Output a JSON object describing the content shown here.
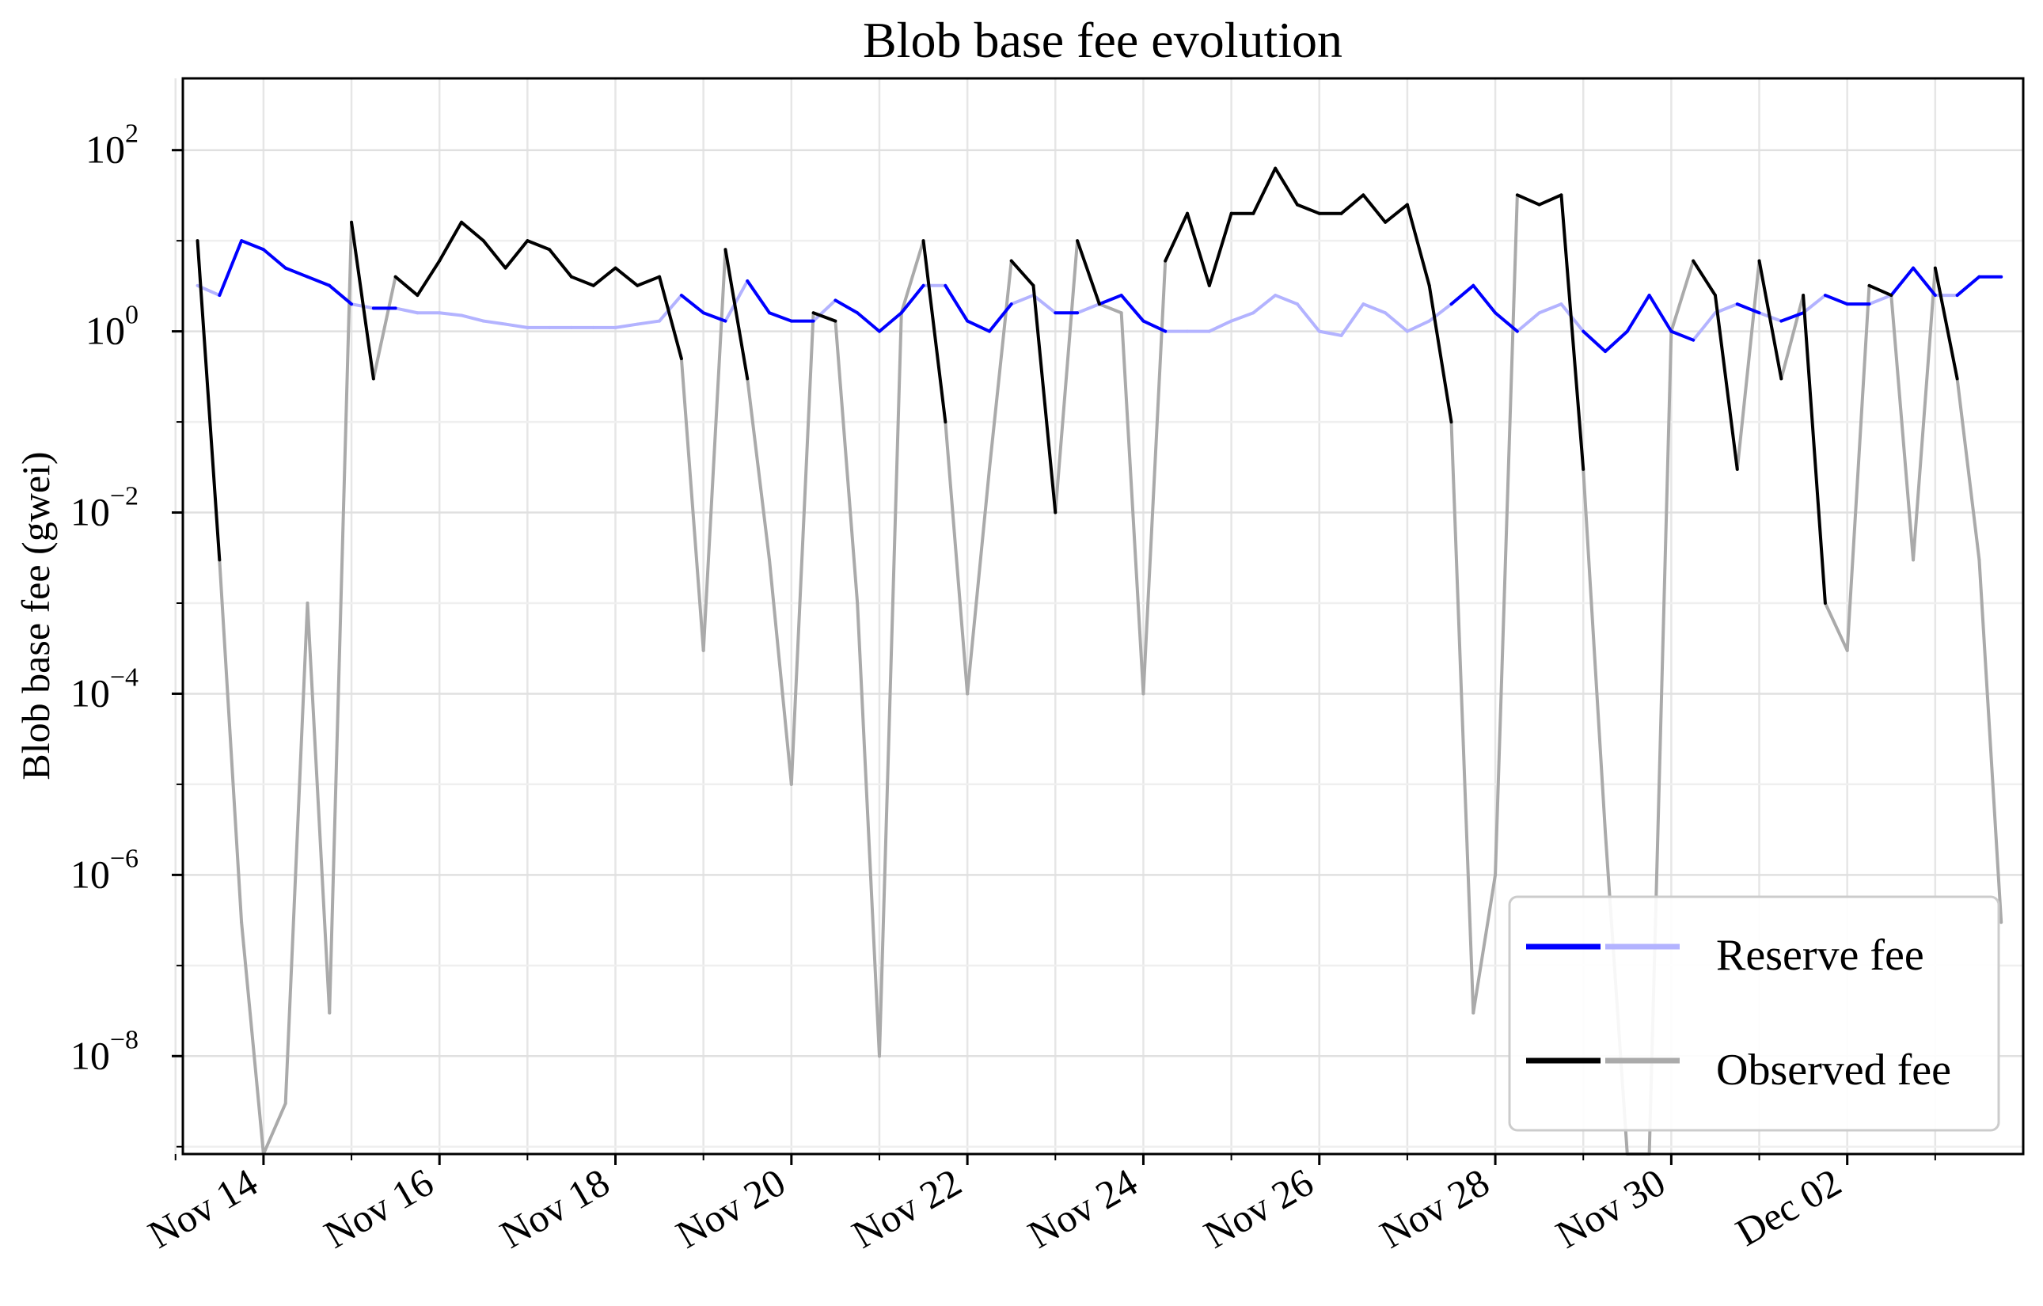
{
  "chart_data": {
    "type": "line",
    "title": "Blob base fee evolution",
    "xlabel": "",
    "ylabel": "Blob base fee (gwei)",
    "yscale": "log",
    "ylim": [
      8.3e-10,
      620
    ],
    "xlim": [
      "Nov 13 02:00",
      "Dec 04 00:00"
    ],
    "grid": true,
    "legend_placement": "lower-right",
    "xticks": [
      "Nov 14",
      "Nov 16",
      "Nov 18",
      "Nov 20",
      "Nov 22",
      "Nov 24",
      "Nov 26",
      "Nov 28",
      "Nov 30",
      "Dec 02"
    ],
    "xticks_minor": [
      "Nov 13",
      "Nov 15",
      "Nov 17",
      "Nov 19",
      "Nov 21",
      "Nov 23",
      "Nov 25",
      "Nov 27",
      "Nov 29",
      "Dec 01",
      "Dec 03"
    ],
    "yticks": [
      {
        "base": "10",
        "exp": "2",
        "value": 100
      },
      {
        "base": "10",
        "exp": "0",
        "value": 1
      },
      {
        "base": "10",
        "exp": "−2",
        "value": 0.01
      },
      {
        "base": "10",
        "exp": "−4",
        "value": 0.0001
      },
      {
        "base": "10",
        "exp": "−6",
        "value": 1e-06
      },
      {
        "base": "10",
        "exp": "−8",
        "value": 1e-08
      }
    ],
    "x": [
      "Nov 13 06:00",
      "Nov 13 12:00",
      "Nov 13 18:00",
      "Nov 14 00:00",
      "Nov 14 06:00",
      "Nov 14 12:00",
      "Nov 14 18:00",
      "Nov 15 00:00",
      "Nov 15 06:00",
      "Nov 15 12:00",
      "Nov 15 18:00",
      "Nov 16 00:00",
      "Nov 16 06:00",
      "Nov 16 12:00",
      "Nov 16 18:00",
      "Nov 17 00:00",
      "Nov 17 06:00",
      "Nov 17 12:00",
      "Nov 17 18:00",
      "Nov 18 00:00",
      "Nov 18 06:00",
      "Nov 18 12:00",
      "Nov 18 18:00",
      "Nov 19 00:00",
      "Nov 19 06:00",
      "Nov 19 12:00",
      "Nov 19 18:00",
      "Nov 20 00:00",
      "Nov 20 06:00",
      "Nov 20 12:00",
      "Nov 20 18:00",
      "Nov 21 00:00",
      "Nov 21 06:00",
      "Nov 21 12:00",
      "Nov 21 18:00",
      "Nov 22 00:00",
      "Nov 22 06:00",
      "Nov 22 12:00",
      "Nov 22 18:00",
      "Nov 23 00:00",
      "Nov 23 06:00",
      "Nov 23 12:00",
      "Nov 23 18:00",
      "Nov 24 00:00",
      "Nov 24 06:00",
      "Nov 24 12:00",
      "Nov 24 18:00",
      "Nov 25 00:00",
      "Nov 25 06:00",
      "Nov 25 12:00",
      "Nov 25 18:00",
      "Nov 26 00:00",
      "Nov 26 06:00",
      "Nov 26 12:00",
      "Nov 26 18:00",
      "Nov 27 00:00",
      "Nov 27 06:00",
      "Nov 27 12:00",
      "Nov 27 18:00",
      "Nov 28 00:00",
      "Nov 28 06:00",
      "Nov 28 12:00",
      "Nov 28 18:00",
      "Nov 29 00:00",
      "Nov 29 06:00",
      "Nov 29 12:00",
      "Nov 29 18:00",
      "Nov 30 00:00",
      "Nov 30 06:00",
      "Nov 30 12:00",
      "Nov 30 18:00",
      "Dec 01 00:00",
      "Dec 01 06:00",
      "Dec 01 12:00",
      "Dec 01 18:00",
      "Dec 02 00:00",
      "Dec 02 06:00",
      "Dec 02 12:00",
      "Dec 02 18:00",
      "Dec 03 00:00",
      "Dec 03 06:00",
      "Dec 03 12:00",
      "Dec 03 18:00"
    ],
    "series": [
      {
        "name": "Reserve fee",
        "color": "#0000ff",
        "color_inactive": "#b3b3ff",
        "values": [
          3.2,
          2.5,
          10,
          8,
          5,
          4,
          3.2,
          2,
          1.8,
          1.8,
          1.6,
          1.6,
          1.5,
          1.3,
          1.2,
          1.1,
          1.1,
          1.1,
          1.1,
          1.1,
          1.2,
          1.3,
          2.5,
          1.6,
          1.3,
          3.6,
          1.6,
          1.3,
          1.3,
          2.2,
          1.6,
          1,
          1.6,
          3.2,
          3.2,
          1.3,
          1,
          2,
          2.5,
          1.6,
          1.6,
          2,
          2.5,
          1.3,
          1,
          1,
          1,
          1.3,
          1.6,
          2.5,
          2,
          1,
          0.9,
          2,
          1.6,
          1,
          1.3,
          2,
          3.2,
          1.6,
          1,
          1.6,
          2,
          1,
          0.6,
          1,
          2.5,
          1,
          0.8,
          1.6,
          2,
          1.6,
          1.3,
          1.6,
          2.5,
          2,
          2,
          2.5,
          5,
          2.5,
          2.5,
          4,
          4
        ]
      },
      {
        "name": "Observed fee",
        "color": "#000000",
        "color_inactive": "#aaaaaa",
        "values": [
          10,
          0.003,
          3e-07,
          8.3e-10,
          3e-09,
          0.001,
          3e-08,
          16,
          0.3,
          4,
          2.5,
          6,
          16,
          10,
          5,
          10,
          8,
          4,
          3.2,
          5,
          3.2,
          4,
          0.5,
          0.0003,
          8,
          0.3,
          0.003,
          1e-05,
          1.6,
          1.3,
          0.001,
          1e-08,
          1.6,
          10,
          0.1,
          0.0001,
          0.03,
          6,
          3.2,
          0.01,
          10,
          2,
          1.6,
          0.0001,
          6,
          20,
          3.2,
          20,
          20,
          63,
          25,
          20,
          20,
          32,
          16,
          25,
          3.2,
          0.1,
          3e-08,
          1e-06,
          32,
          25,
          32,
          0.03,
          3e-06,
          8.3e-10,
          8.3e-10,
          1,
          6,
          2.5,
          0.03,
          6,
          0.3,
          2.5,
          0.001,
          0.0003,
          3.2,
          2.5,
          0.003,
          5,
          0.3,
          0.003,
          3e-07
        ]
      }
    ]
  }
}
